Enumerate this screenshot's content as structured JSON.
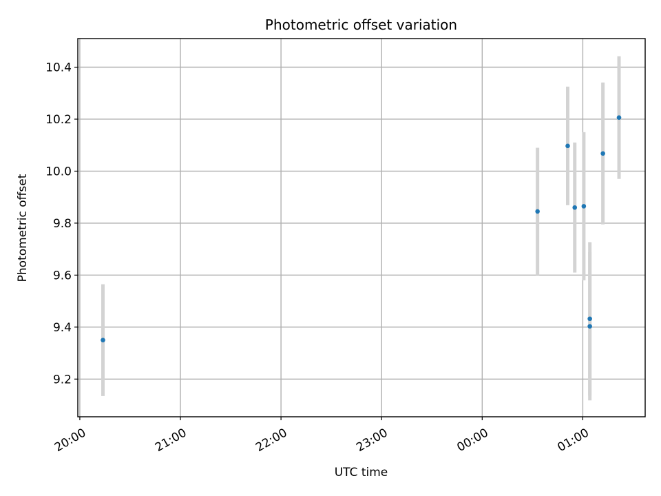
{
  "chart_data": {
    "type": "scatter",
    "title": "Photometric offset variation",
    "xlabel": "UTC time",
    "ylabel": "Photometric offset",
    "x_unit": "hours",
    "x_origin_label": "20:00",
    "xlim": [
      19.98,
      25.62
    ],
    "ylim": [
      9.055,
      10.51
    ],
    "x_ticks": [
      {
        "value": 20,
        "label": "20:00"
      },
      {
        "value": 21,
        "label": "21:00"
      },
      {
        "value": 22,
        "label": "22:00"
      },
      {
        "value": 23,
        "label": "23:00"
      },
      {
        "value": 24,
        "label": "00:00"
      },
      {
        "value": 25,
        "label": "01:00"
      }
    ],
    "y_ticks": [
      {
        "value": 9.2,
        "label": "9.2"
      },
      {
        "value": 9.4,
        "label": "9.4"
      },
      {
        "value": 9.6,
        "label": "9.6"
      },
      {
        "value": 9.8,
        "label": "9.8"
      },
      {
        "value": 10.0,
        "label": "10.0"
      },
      {
        "value": 10.2,
        "label": "10.2"
      },
      {
        "value": 10.4,
        "label": "10.4"
      }
    ],
    "grid": true,
    "point_color": "#1f77b4",
    "error_color": "#d3d3d3",
    "points": [
      {
        "x": 20.23,
        "y": 9.35,
        "yerr": 0.215
      },
      {
        "x": 24.55,
        "y": 9.845,
        "yerr": 0.245
      },
      {
        "x": 24.85,
        "y": 10.097,
        "yerr": 0.228
      },
      {
        "x": 24.92,
        "y": 9.86,
        "yerr": 0.25
      },
      {
        "x": 25.01,
        "y": 9.865,
        "yerr": 0.285
      },
      {
        "x": 25.07,
        "y": 9.432,
        "yerr": 0.295
      },
      {
        "x": 25.07,
        "y": 9.403,
        "yerr": 0.285
      },
      {
        "x": 25.2,
        "y": 10.068,
        "yerr": 0.273
      },
      {
        "x": 25.36,
        "y": 10.206,
        "yerr": 0.236
      }
    ]
  }
}
